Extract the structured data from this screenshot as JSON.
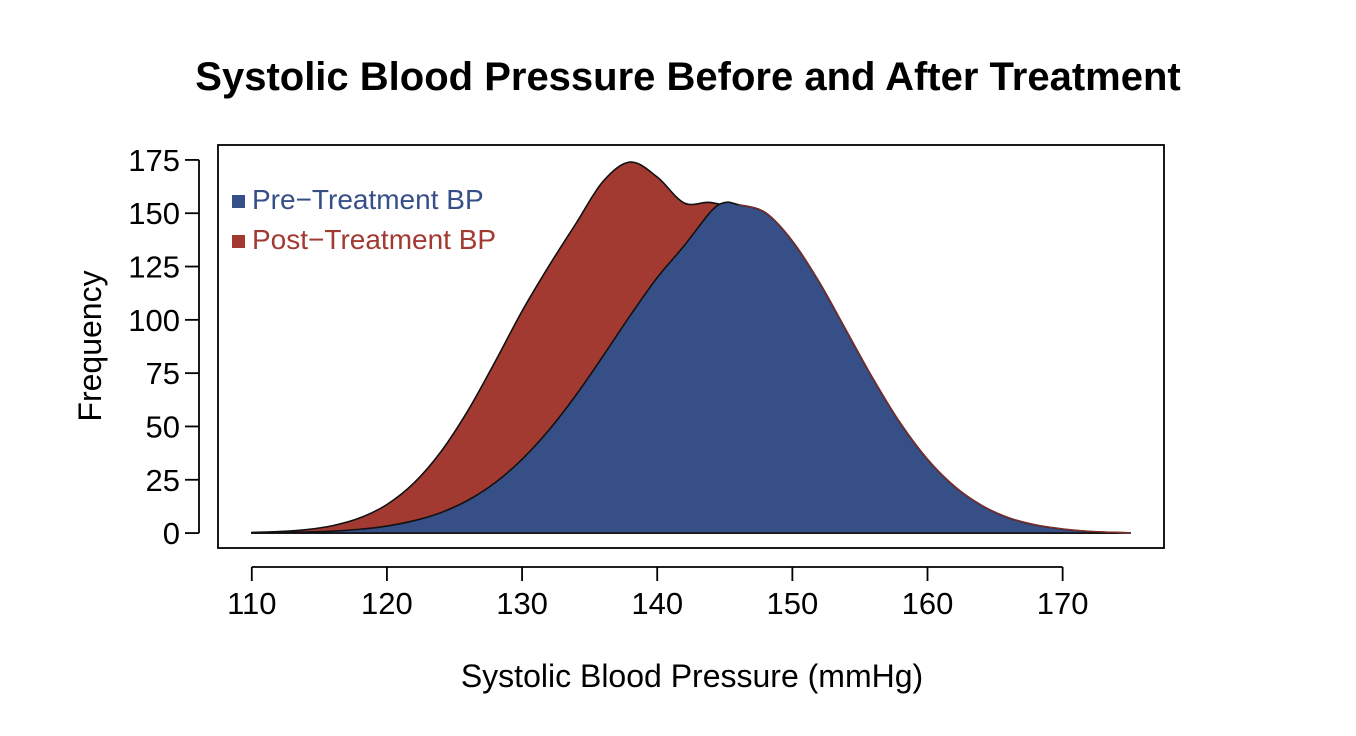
{
  "chart_data": {
    "type": "area",
    "title": "Systolic Blood Pressure Before and After Treatment",
    "xlabel": "Systolic Blood Pressure (mmHg)",
    "ylabel": "Frequency",
    "xlim": [
      107.5,
      177.5
    ],
    "ylim": [
      -7,
      182
    ],
    "x_ticks": [
      110,
      120,
      130,
      140,
      150,
      160,
      170
    ],
    "y_ticks": [
      0,
      25,
      50,
      75,
      100,
      125,
      150,
      175
    ],
    "grid": false,
    "legend_position": "top-left",
    "series": [
      {
        "name": "Post−Treatment BP",
        "color": "#A23A32",
        "x_range": [
          110,
          174
        ],
        "x": [
          110,
          112,
          114,
          116,
          118,
          120,
          122,
          124,
          126,
          128,
          130,
          132,
          134,
          136,
          138,
          140,
          142,
          144,
          146,
          148,
          150,
          152,
          154,
          156,
          158,
          160,
          162,
          164,
          166,
          168,
          170,
          172,
          174
        ],
        "values": [
          0.3,
          0.7,
          1.6,
          3.5,
          7.1,
          13.4,
          23.5,
          38.2,
          57.5,
          80.3,
          104.1,
          125.4,
          145.3,
          165,
          174,
          167,
          154.8,
          155,
          150.3,
          137,
          117.6,
          94.9,
          72.1,
          51.5,
          34.6,
          21.9,
          13,
          7.2,
          3.8,
          1.9,
          0.8,
          0.4,
          0.1
        ]
      },
      {
        "name": "Pre−Treatment BP",
        "color": "#364F86",
        "x_range": [
          110,
          175
        ],
        "x": [
          110,
          112,
          114,
          116,
          118,
          120,
          122,
          124,
          126,
          128,
          130,
          132,
          134,
          136,
          138,
          140,
          142,
          144,
          145,
          146,
          148,
          150,
          152,
          154,
          156,
          158,
          160,
          162,
          164,
          166,
          168,
          170,
          172,
          175
        ],
        "values": [
          0.1,
          0.2,
          0.5,
          0.9,
          1.8,
          3.3,
          5.8,
          9.6,
          15.4,
          23.6,
          34.6,
          48.4,
          64.8,
          83.1,
          102,
          119.8,
          134.8,
          151,
          155,
          154,
          150.3,
          137,
          117.6,
          94.9,
          72.1,
          51.5,
          34.6,
          21.9,
          13,
          7.2,
          3.8,
          1.9,
          0.8,
          0.1
        ]
      }
    ]
  }
}
